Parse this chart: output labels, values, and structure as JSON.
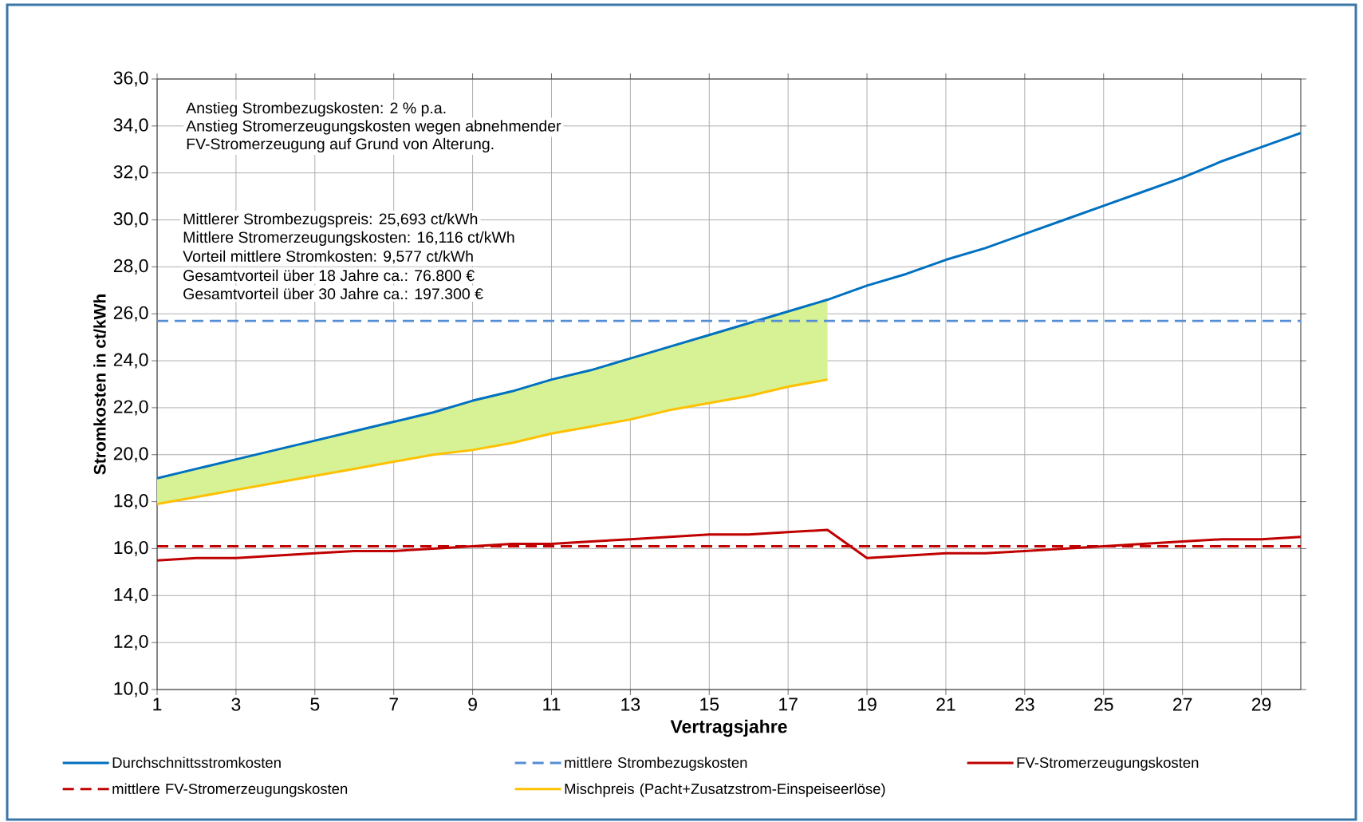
{
  "chart_data": {
    "type": "line",
    "xlabel": "Vertragsjahre",
    "ylabel": "Stromkosten in ct/kWh",
    "x": [
      1,
      2,
      3,
      4,
      5,
      6,
      7,
      8,
      9,
      10,
      11,
      12,
      13,
      14,
      15,
      16,
      17,
      18,
      19,
      20,
      21,
      22,
      23,
      24,
      25,
      26,
      27,
      28,
      29,
      30
    ],
    "xlim": [
      1,
      30
    ],
    "xticks": [
      1,
      3,
      5,
      7,
      9,
      11,
      13,
      15,
      17,
      19,
      21,
      23,
      25,
      27,
      29
    ],
    "ylim": [
      10,
      36
    ],
    "yticks": [
      {
        "value": 10,
        "label": "10,0"
      },
      {
        "value": 12,
        "label": "12,0"
      },
      {
        "value": 14,
        "label": "14,0"
      },
      {
        "value": 16,
        "label": "16,0"
      },
      {
        "value": 18,
        "label": "18,0"
      },
      {
        "value": 20,
        "label": "20,0"
      },
      {
        "value": 22,
        "label": "22,0"
      },
      {
        "value": 24,
        "label": "24,0"
      },
      {
        "value": 26,
        "label": "26,0"
      },
      {
        "value": 28,
        "label": "28,0"
      },
      {
        "value": 30,
        "label": "30,0"
      },
      {
        "value": 32,
        "label": "32,0"
      },
      {
        "value": 34,
        "label": "34,0"
      },
      {
        "value": 36,
        "label": "36,0"
      }
    ],
    "grid": true,
    "legend": "bottom",
    "series": [
      {
        "name": "Durchschnittsstromkosten",
        "color": "#0070c0",
        "line_style": "solid",
        "values": [
          19.0,
          19.4,
          19.8,
          20.2,
          20.6,
          21.0,
          21.4,
          21.8,
          22.3,
          22.7,
          23.2,
          23.6,
          24.1,
          24.6,
          25.1,
          25.6,
          26.1,
          26.6,
          27.2,
          27.7,
          28.3,
          28.8,
          29.4,
          30.0,
          30.6,
          31.2,
          31.8,
          32.5,
          33.1,
          33.7
        ]
      },
      {
        "name": "mittlere Strombezugskosten",
        "color": "#558ed5",
        "line_style": "dashed",
        "values": [
          25.7,
          25.7,
          25.7,
          25.7,
          25.7,
          25.7,
          25.7,
          25.7,
          25.7,
          25.7,
          25.7,
          25.7,
          25.7,
          25.7,
          25.7,
          25.7,
          25.7,
          25.7,
          25.7,
          25.7,
          25.7,
          25.7,
          25.7,
          25.7,
          25.7,
          25.7,
          25.7,
          25.7,
          25.7,
          25.7
        ]
      },
      {
        "name": "FV-Stromerzeugungskosten",
        "color": "#c00000",
        "line_style": "solid",
        "values": [
          15.5,
          15.6,
          15.6,
          15.7,
          15.8,
          15.9,
          15.9,
          16.0,
          16.1,
          16.2,
          16.2,
          16.3,
          16.4,
          16.5,
          16.6,
          16.6,
          16.7,
          16.8,
          15.6,
          15.7,
          15.8,
          15.8,
          15.9,
          16.0,
          16.1,
          16.2,
          16.3,
          16.4,
          16.4,
          16.5
        ]
      },
      {
        "name": "mittlere FV-Stromerzeugungskosten",
        "color": "#c00000",
        "line_style": "dashed",
        "values": [
          16.1,
          16.1,
          16.1,
          16.1,
          16.1,
          16.1,
          16.1,
          16.1,
          16.1,
          16.1,
          16.1,
          16.1,
          16.1,
          16.1,
          16.1,
          16.1,
          16.1,
          16.1,
          16.1,
          16.1,
          16.1,
          16.1,
          16.1,
          16.1,
          16.1,
          16.1,
          16.1,
          16.1,
          16.1,
          16.1
        ]
      },
      {
        "name": "Mischpreis (Pacht+Zusatzstrom-Einspeiseerlöse)",
        "color": "#ffc000",
        "line_style": "solid",
        "x": [
          1,
          2,
          3,
          4,
          5,
          6,
          7,
          8,
          9,
          10,
          11,
          12,
          13,
          14,
          15,
          16,
          17,
          18
        ],
        "values": [
          17.9,
          18.2,
          18.5,
          18.8,
          19.1,
          19.4,
          19.7,
          20.0,
          20.2,
          20.5,
          20.9,
          21.2,
          21.5,
          21.9,
          22.2,
          22.5,
          22.9,
          23.2
        ],
        "lower": [
          17.9,
          18.2,
          18.5,
          18.8,
          19.1,
          19.4,
          19.7,
          20.0,
          20.2,
          20.5,
          20.9,
          21.2,
          21.5,
          21.9,
          22.2,
          22.5,
          22.9,
          23.2
        ],
        "upper": [
          19.0,
          19.4,
          19.8,
          20.2,
          20.6,
          21.0,
          21.4,
          21.8,
          22.3,
          22.7,
          23.2,
          23.6,
          24.1,
          24.6,
          25.1,
          25.6,
          26.1,
          26.6
        ]
      }
    ],
    "annotations": [
      "Anstieg Strombezugskosten: 2 % p.a.",
      "Anstieg Stromerzeugungskosten wegen abnehmender",
      "FV-Stromerzeugung auf Grund von Alterung.",
      "Mittlerer Strombezugspreis: 25,693 ct/kWh",
      "Mittlere Stromerzeugungskosten: 16,116 ct/kWh",
      "Vorteil mittlere Stromkosten: 9,577 ct/kWh",
      "Gesamtvorteil über 18 Jahre ca.: 76.800 €",
      "Gesamtvorteil über 30 Jahre ca.: 197.300 €"
    ]
  }
}
